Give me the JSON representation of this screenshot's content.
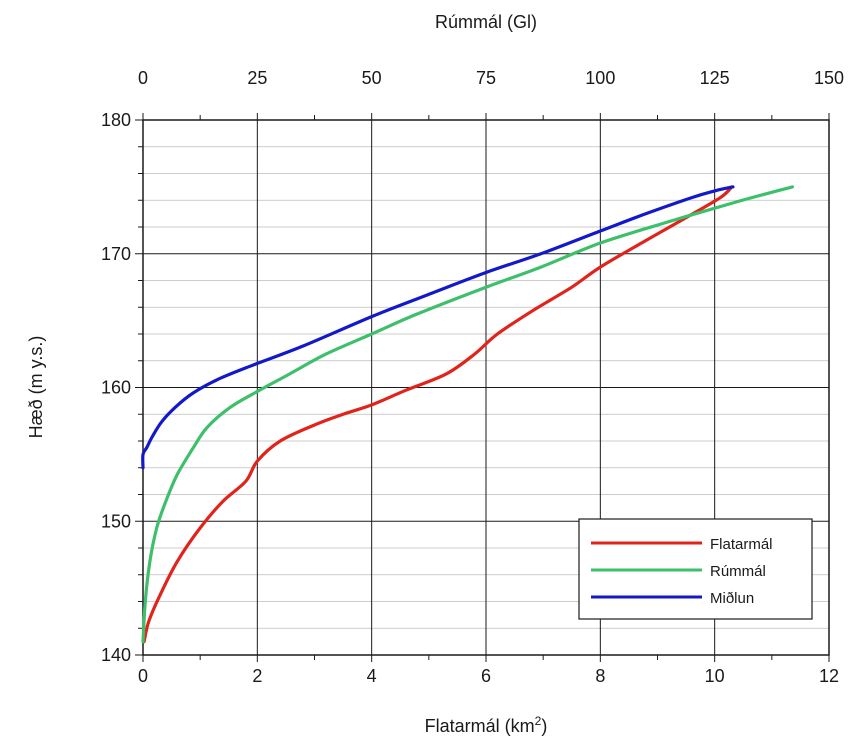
{
  "chart_data": {
    "type": "line",
    "x_bottom": {
      "label": "Flatarmál (km",
      "label_sup": "2",
      "label_end": ")",
      "lim": [
        0,
        12
      ],
      "ticks": [
        0,
        2,
        4,
        6,
        8,
        10,
        12
      ]
    },
    "x_top": {
      "label": "Rúmmál (Gl)",
      "lim": [
        0,
        150
      ],
      "ticks": [
        0,
        25,
        50,
        75,
        100,
        125,
        150
      ]
    },
    "y": {
      "label": "Hæð (m y.s.)",
      "lim": [
        140,
        180
      ],
      "ticks": [
        140,
        150,
        160,
        170,
        180
      ]
    },
    "grid": true,
    "legend_position": "bottom-right",
    "series": [
      {
        "name": "Flatarmál",
        "axis": "bottom",
        "color": "#e0231b",
        "points": [
          [
            0.02,
            141
          ],
          [
            0.1,
            142.5
          ],
          [
            0.3,
            144.5
          ],
          [
            0.6,
            147
          ],
          [
            1.0,
            149.5
          ],
          [
            1.4,
            151.5
          ],
          [
            1.8,
            153
          ],
          [
            2.0,
            154.5
          ],
          [
            2.4,
            156
          ],
          [
            3.0,
            157.2
          ],
          [
            3.5,
            158
          ],
          [
            4.0,
            158.7
          ],
          [
            4.6,
            159.8
          ],
          [
            5.3,
            161
          ],
          [
            5.8,
            162.5
          ],
          [
            6.2,
            164
          ],
          [
            6.8,
            165.7
          ],
          [
            7.5,
            167.5
          ],
          [
            8.0,
            169
          ],
          [
            8.8,
            171
          ],
          [
            9.5,
            172.7
          ],
          [
            10.1,
            174.2
          ],
          [
            10.3,
            175
          ]
        ]
      },
      {
        "name": "Rúmmál",
        "axis": "top",
        "color": "#3dbf6b",
        "points": [
          [
            0,
            141
          ],
          [
            0.5,
            144
          ],
          [
            1.5,
            147
          ],
          [
            3,
            149.5
          ],
          [
            5,
            151.5
          ],
          [
            7.5,
            153.5
          ],
          [
            11,
            155.5
          ],
          [
            14,
            157
          ],
          [
            19,
            158.5
          ],
          [
            25,
            159.7
          ],
          [
            32,
            161
          ],
          [
            40,
            162.5
          ],
          [
            50,
            164
          ],
          [
            60,
            165.5
          ],
          [
            75,
            167.5
          ],
          [
            87,
            169
          ],
          [
            100,
            170.8
          ],
          [
            115,
            172.4
          ],
          [
            130,
            173.9
          ],
          [
            142,
            175
          ]
        ]
      },
      {
        "name": "Miðlun",
        "axis": "top",
        "color": "#1219c8",
        "points": [
          [
            0,
            154
          ],
          [
            0,
            155
          ],
          [
            0.8,
            155.5
          ],
          [
            2,
            156.3
          ],
          [
            4,
            157.4
          ],
          [
            7,
            158.5
          ],
          [
            11,
            159.6
          ],
          [
            17,
            160.7
          ],
          [
            25,
            161.8
          ],
          [
            35,
            163.1
          ],
          [
            50,
            165.3
          ],
          [
            62,
            166.9
          ],
          [
            75,
            168.6
          ],
          [
            87,
            170
          ],
          [
            100,
            171.7
          ],
          [
            110,
            173
          ],
          [
            120,
            174.2
          ],
          [
            125,
            174.7
          ],
          [
            129,
            175
          ]
        ]
      }
    ]
  }
}
